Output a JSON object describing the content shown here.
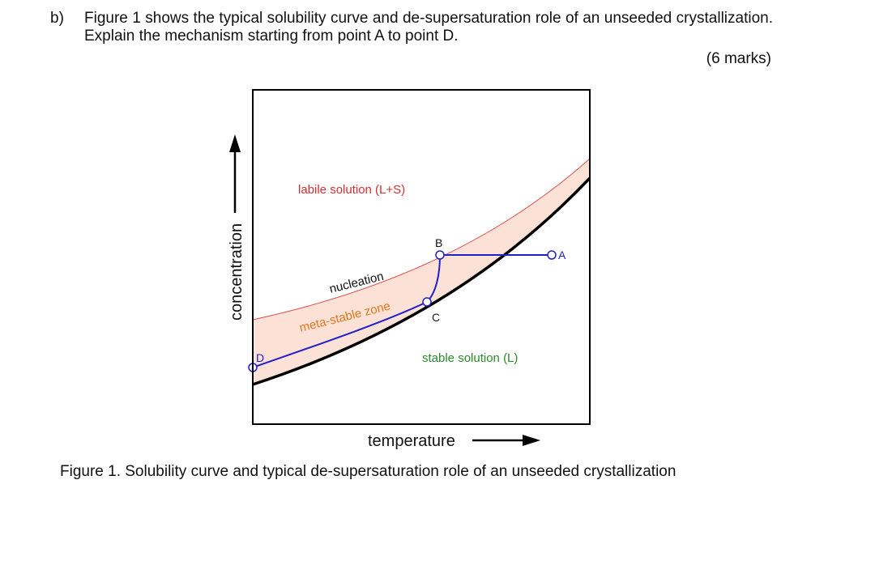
{
  "question": {
    "label": "b)",
    "text": "Figure 1 shows the typical solubility curve and de-supersaturation role of an unseeded crystallization. Explain the mechanism starting from point A to point D.",
    "marks": "(6 marks)"
  },
  "figure": {
    "xlabel": "temperature",
    "ylabel": "concentration",
    "regions": {
      "labile": "labile solution (L+S)",
      "nucleation": "nucleation",
      "metastable": "meta-stable zone",
      "stable": "stable solution (L)"
    },
    "points": {
      "A": "A",
      "B": "B",
      "C": "C",
      "D": "D"
    },
    "colors": {
      "solubility": "#000000",
      "supersolubility": "#e05050",
      "zone_fill": "#fbe1d6",
      "path": "#2020c8",
      "labile_text": "#d03030",
      "metastable_text": "#e07820",
      "stable_text": "#2a8a2a"
    },
    "caption": "Figure 1. Solubility curve and typical de-supersaturation role of an unseeded crystallization"
  }
}
